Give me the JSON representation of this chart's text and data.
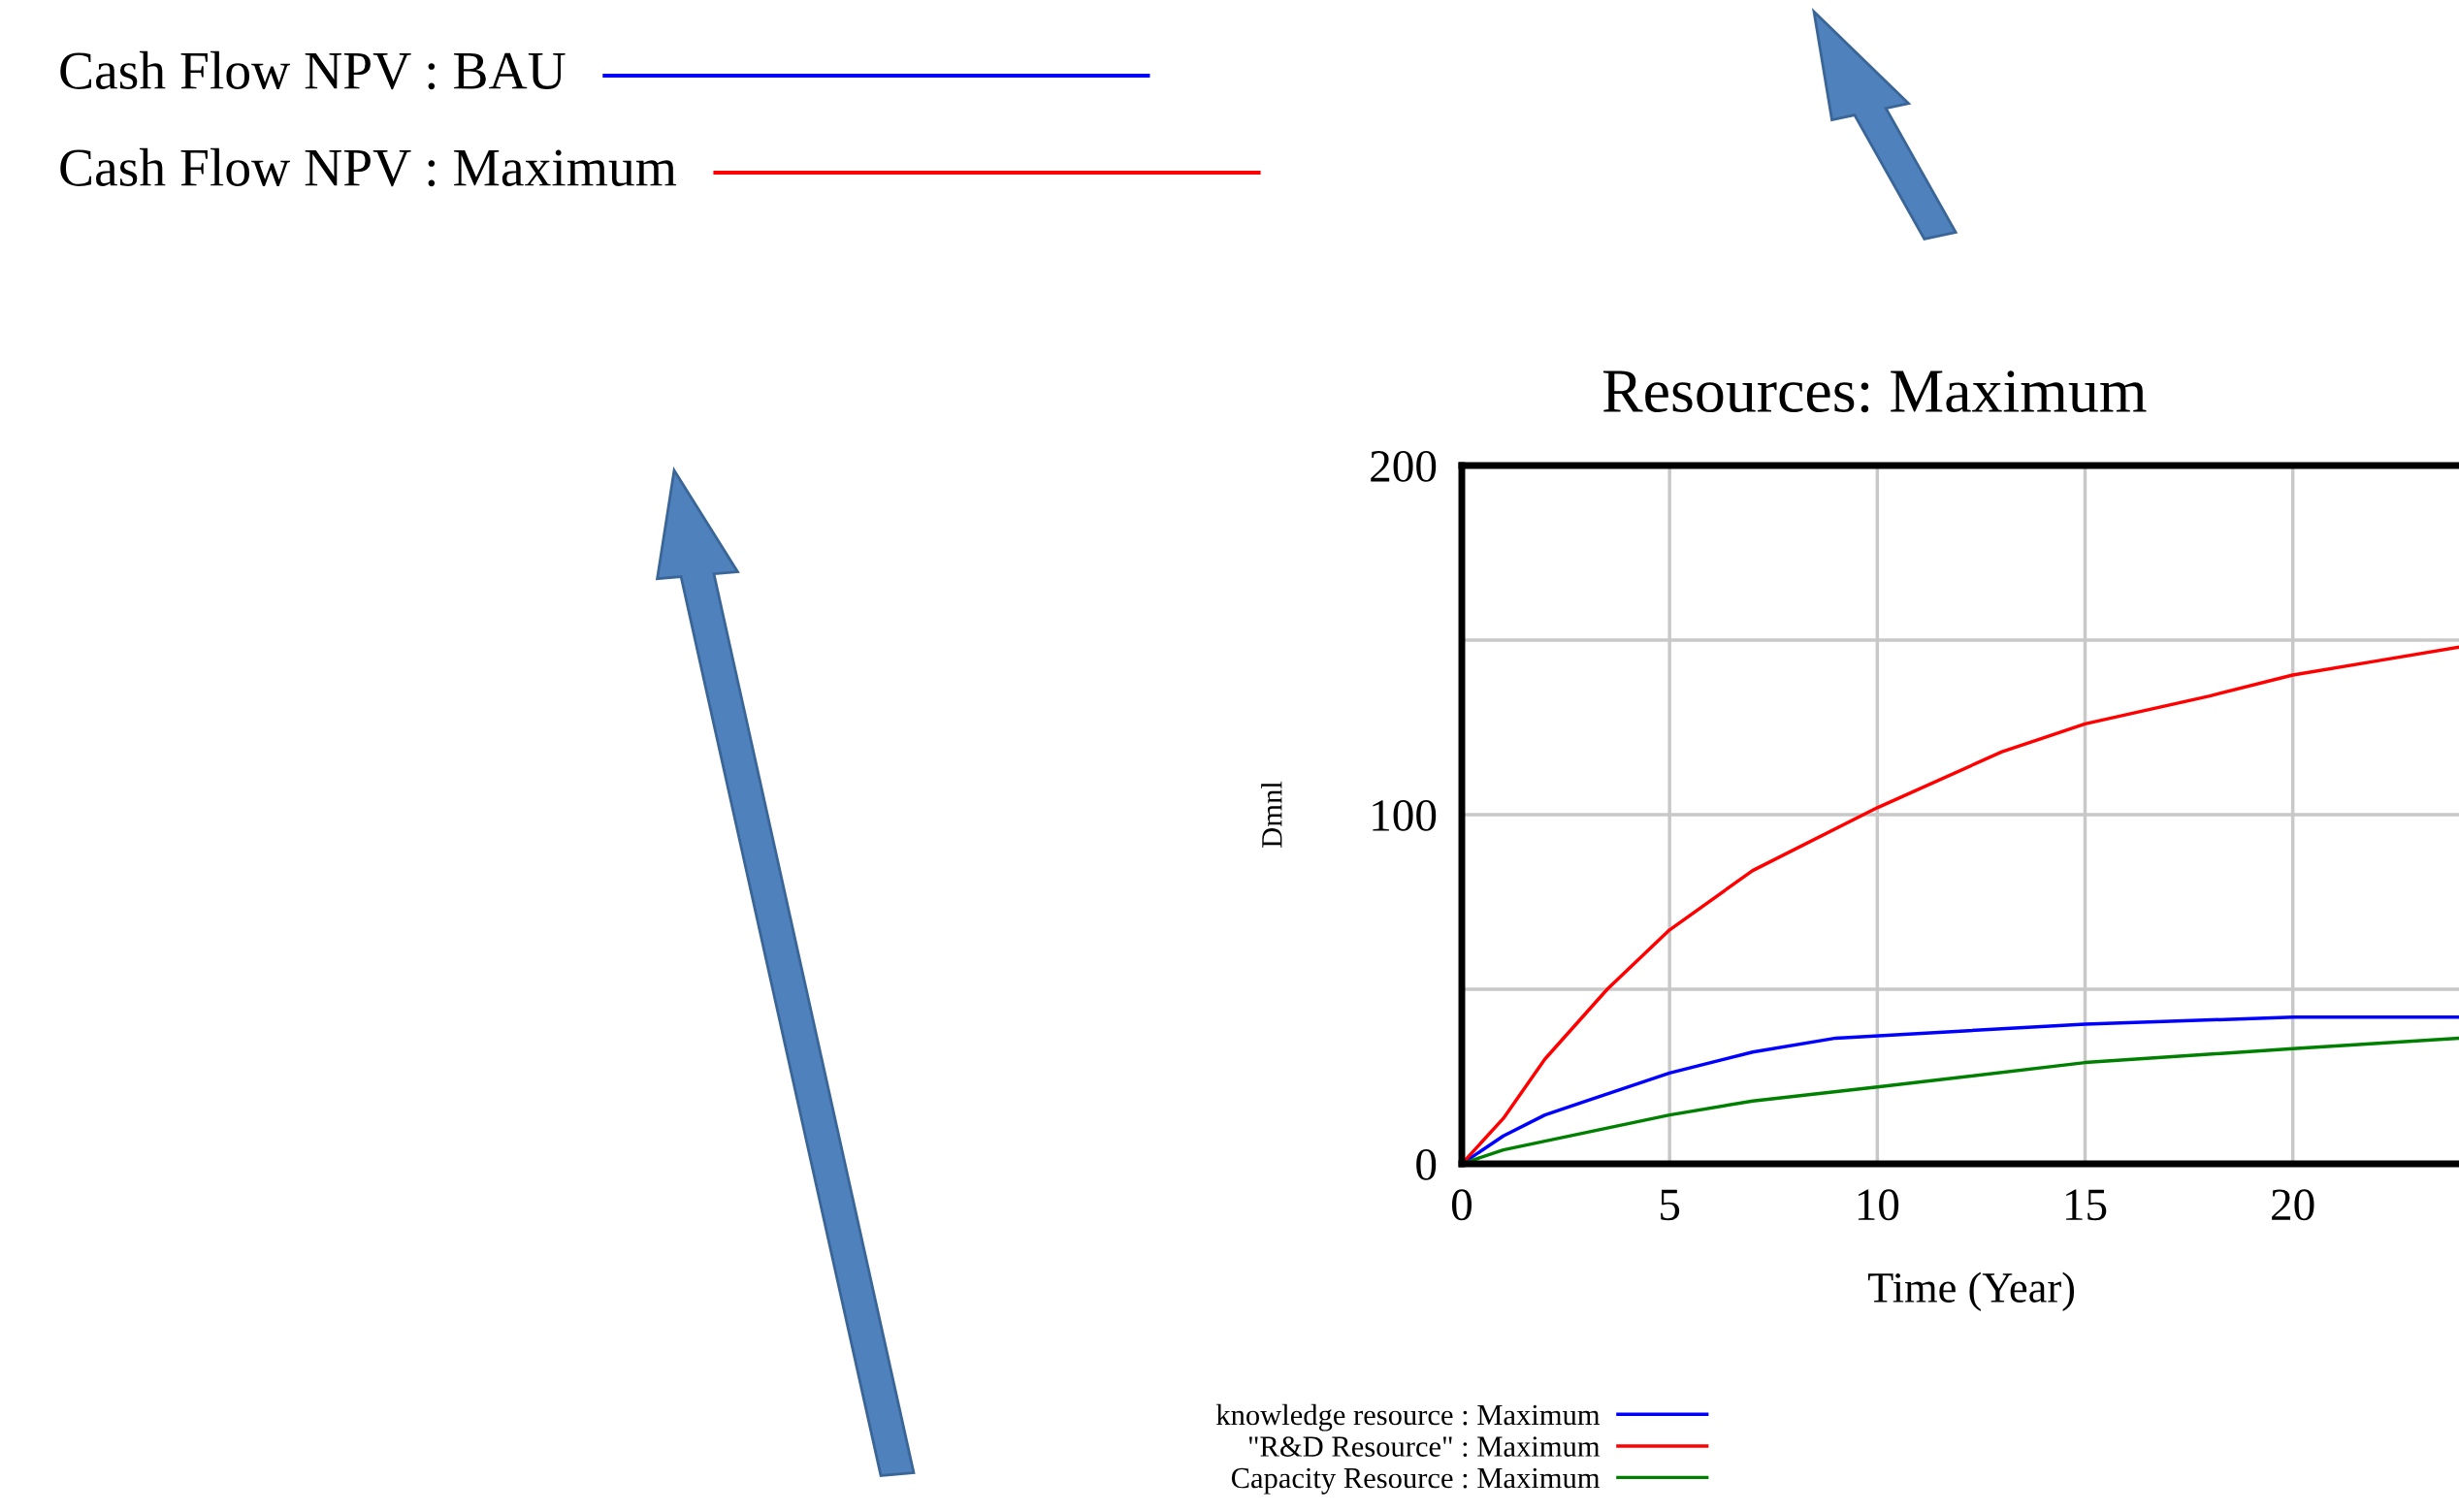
{
  "chart_data": [
    {
      "type": "line",
      "title": "Resources: Maximum",
      "xlabel": "Time (Year)",
      "ylabel": "Dmnl",
      "xlim": [
        0,
        24
      ],
      "xticks": [
        0,
        5,
        10,
        15,
        20
      ],
      "ylim": [
        0,
        200
      ],
      "yticks": [
        0,
        {
          "value": 50,
          "label": null
        },
        100,
        {
          "value": 150,
          "label": null
        },
        200
      ],
      "grid": true,
      "legend": "bottom",
      "series": [
        {
          "name": "knowledge resource : Maximum",
          "color": "#0000ff",
          "x": [
            0,
            1,
            2,
            3,
            5,
            7,
            9,
            12,
            15,
            20,
            24
          ],
          "values": [
            0,
            8,
            14,
            18,
            26,
            32,
            36,
            38,
            40,
            42,
            42
          ]
        },
        {
          "name": "\"R&D Resource\" : Maximum",
          "color": "#ff0000",
          "x": [
            0,
            1,
            2,
            3.5,
            5,
            7,
            10,
            13,
            15,
            18,
            20,
            22,
            24
          ],
          "values": [
            0,
            13,
            30,
            50,
            67,
            84,
            102,
            118,
            126,
            134,
            140,
            144,
            148
          ]
        },
        {
          "name": "Capacity Resource : Maximum",
          "color": "#008000",
          "x": [
            0,
            1,
            3,
            5,
            7,
            10,
            15,
            20,
            24
          ],
          "values": [
            0,
            4,
            9,
            14,
            18,
            22,
            29,
            33,
            36
          ]
        }
      ]
    },
    {
      "type": "other",
      "annotations": [
        "Cash Flow NPV : BAU",
        "Cash Flow NPV : Maximum"
      ]
    }
  ]
}
